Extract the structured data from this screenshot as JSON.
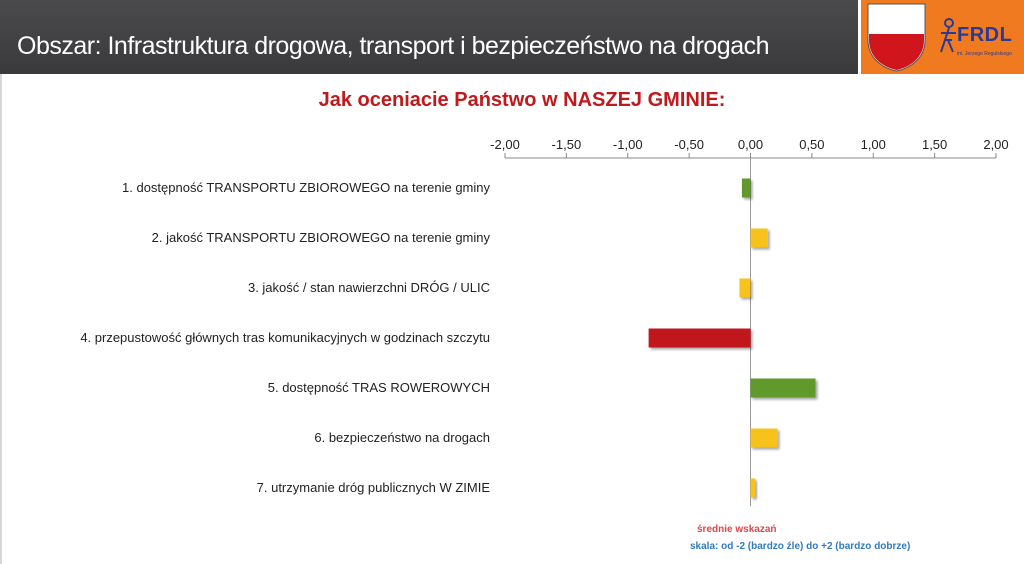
{
  "header": {
    "title": "Obszar: Infrastruktura drogowa, transport i bezpieczeństwo na drogach"
  },
  "brand": {
    "name": "FRDL",
    "subtitle": "im. Jerzego Regulskiego"
  },
  "chart_data": {
    "type": "bar",
    "orientation": "horizontal",
    "title": "Jak oceniacie Państwo w NASZEJ GMINIE:",
    "xlim": [
      -2,
      2
    ],
    "x_ticks": [
      "-2,00",
      "-1,50",
      "-1,00",
      "-0,50",
      "0,00",
      "0,50",
      "1,00",
      "1,50",
      "2,00"
    ],
    "x_tick_values": [
      -2,
      -1.5,
      -1,
      -0.5,
      0,
      0.5,
      1,
      1.5,
      2
    ],
    "x_axis_position": "top",
    "grid": false,
    "categories": [
      "1. dostępność TRANSPORTU ZBIOROWEGO na terenie gminy",
      "2. jakość TRANSPORTU ZBIOROWEGO na terenie gminy",
      "3. jakość / stan nawierzchni DRÓG / ULIC",
      "4. przepustowość głównych tras komunikacyjnych w godzinach szczytu",
      "5. dostępność TRAS ROWEROWYCH",
      "6. bezpieczeństwo na drogach",
      "7. utrzymanie dróg publicznych W ZIMIE"
    ],
    "values": [
      -0.07,
      0.14,
      -0.09,
      -0.83,
      0.53,
      0.22,
      0.04
    ],
    "bar_colors": [
      "#5e9a2a",
      "#f7c21b",
      "#f7c21b",
      "#c0191e",
      "#5e9a2a",
      "#f7c21b",
      "#f7c21b"
    ]
  },
  "notes": {
    "line1": "średnie wskazań",
    "line2": "skala: od -2 (bardzo źle) do +2 (bardzo dobrze)"
  }
}
